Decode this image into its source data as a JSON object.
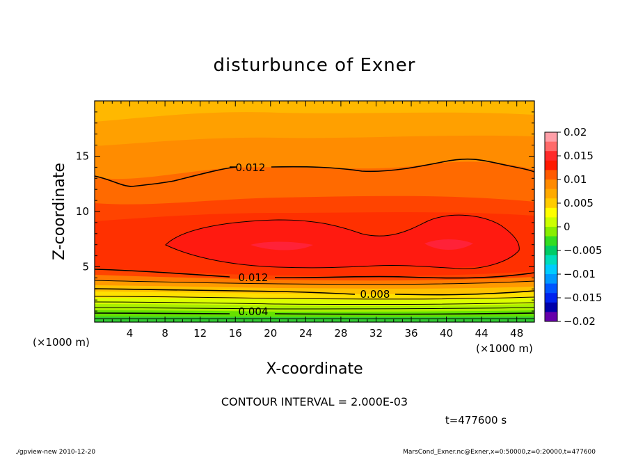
{
  "chart_data": {
    "type": "contour",
    "title": "disturbunce of Exner",
    "xlabel": "X-coordinate",
    "ylabel": "Z-coordinate",
    "x_unit": "(×1000 m)",
    "x_unit_right": "(×1000 m)",
    "z_unit": "(×1000 m)",
    "xlim": [
      0,
      50
    ],
    "ylim": [
      0,
      20
    ],
    "x_ticks": [
      "4",
      "8",
      "12",
      "16",
      "20",
      "24",
      "28",
      "32",
      "36",
      "40",
      "44",
      "48"
    ],
    "y_ticks": [
      "5",
      "10",
      "15"
    ],
    "contour_interval_text": "CONTOUR INTERVAL = 2.000E-03",
    "time_text": "t=477600 s",
    "contour_labels": [
      {
        "text": "0.012",
        "x": 17.5,
        "z": 14.0
      },
      {
        "text": "0.012",
        "x": 18.0,
        "z": 3.9
      },
      {
        "text": "0.008",
        "x": 31.0,
        "z": 2.5
      },
      {
        "text": "0.004",
        "x": 18.2,
        "z": 0.9
      }
    ],
    "colorbar": {
      "labels": [
        "0.02",
        "0.015",
        "0.01",
        "0.005",
        "0",
        "−0.005",
        "−0.01",
        "−0.015",
        "−0.02"
      ],
      "colors": [
        "#ff9fa8",
        "#ff6a6a",
        "#ff2a2a",
        "#ff1a00",
        "#ff5a00",
        "#ff8a00",
        "#ffaa00",
        "#ffcc00",
        "#ffff00",
        "#ccff00",
        "#88ee00",
        "#33dd22",
        "#00cc66",
        "#00ddbb",
        "#00ccff",
        "#0099ff",
        "#0055ff",
        "#0022ee",
        "#0000aa",
        "#6600aa"
      ]
    },
    "fields": [
      {
        "level": "0.004–0.006",
        "color": "#99ee00"
      },
      {
        "level": "0.006–0.008",
        "color": "#ddff00"
      },
      {
        "level": "0.008–0.010",
        "color": "#ffcc00"
      },
      {
        "level": "0.010–0.012",
        "color": "#ffaa00"
      },
      {
        "level": "0.012–0.014",
        "color": "#ff6600"
      },
      {
        "level": "0.014–0.016",
        "color": "#ff3300"
      },
      {
        "level": "0.016–0.018",
        "color": "#ff1111"
      }
    ]
  },
  "footer": {
    "left": "./gpview-new   2010-12-20",
    "right": "MarsCond_Exner.nc@Exner,x=0:50000,z=0:20000,t=477600"
  }
}
